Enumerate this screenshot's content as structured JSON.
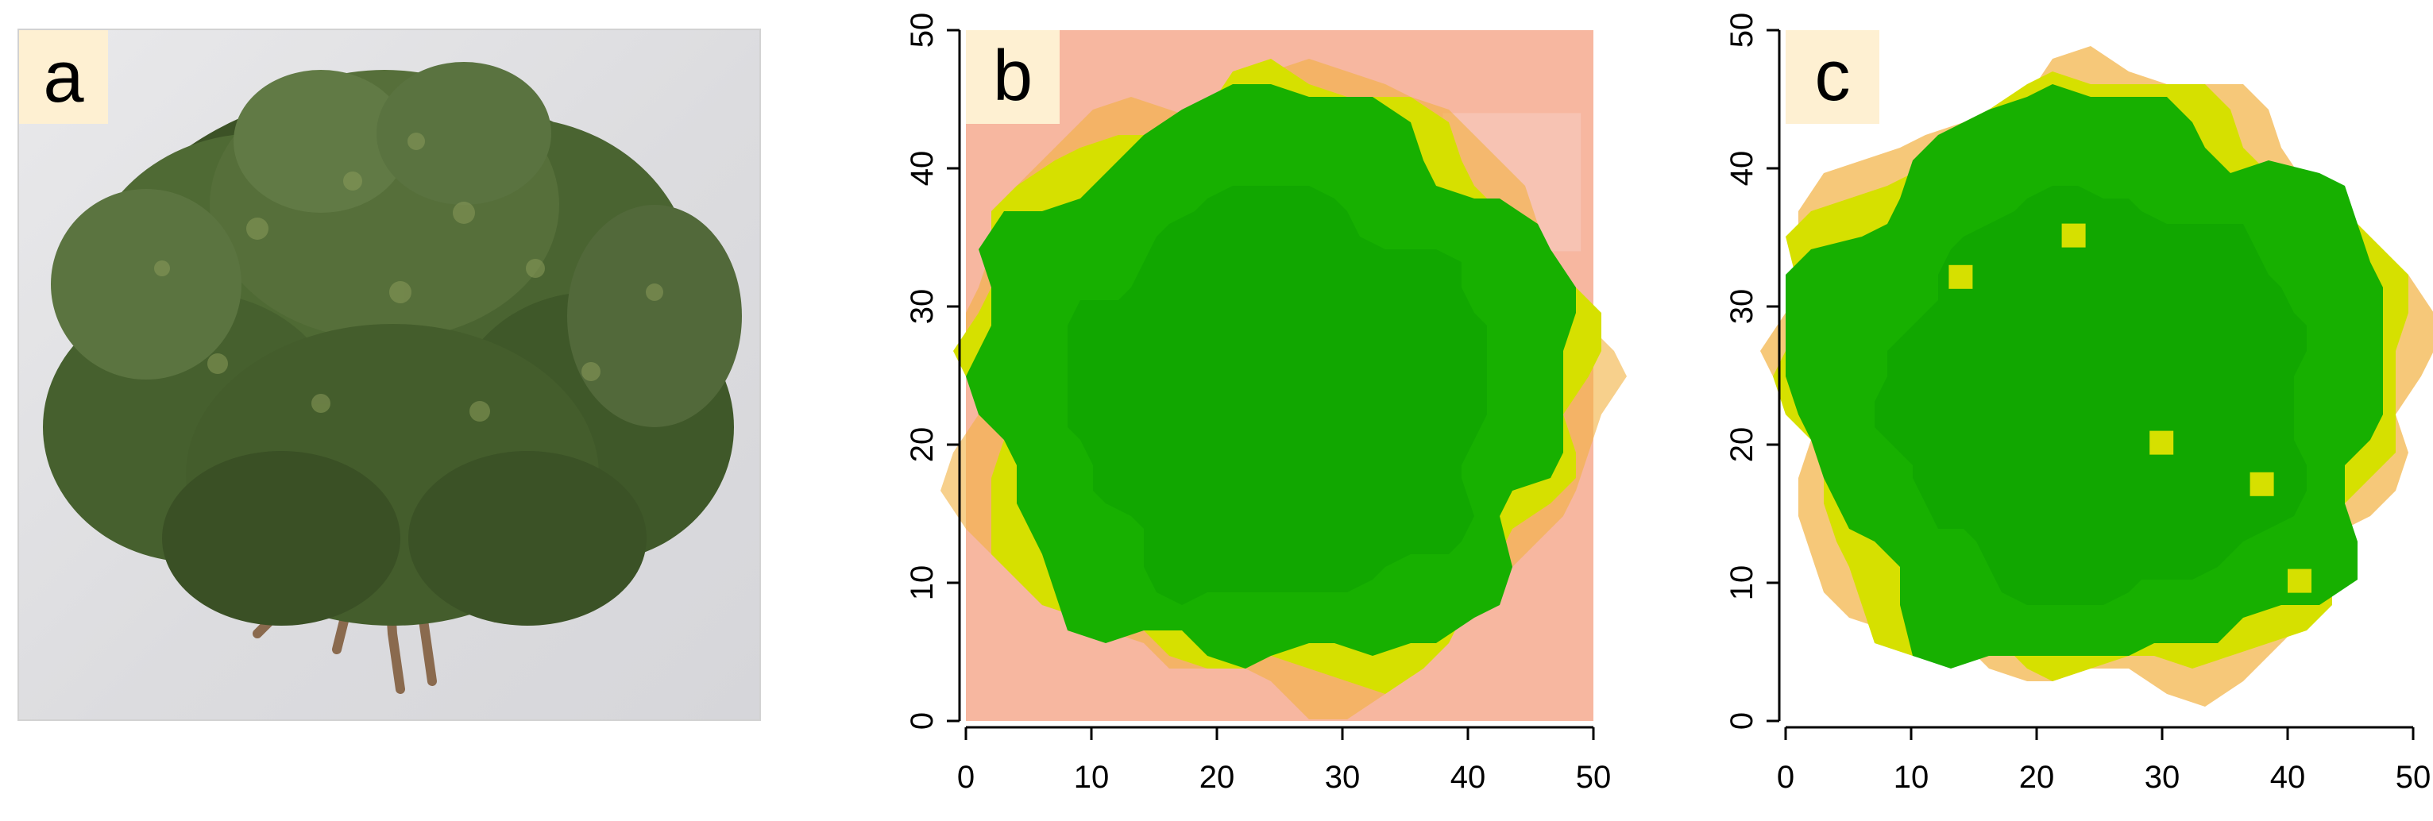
{
  "panels": [
    {
      "id": "a",
      "label": "a",
      "kind": "photo",
      "subject": "cedar-foliage"
    },
    {
      "id": "b",
      "label": "b",
      "kind": "raster-plot",
      "background": "salmon"
    },
    {
      "id": "c",
      "label": "c",
      "kind": "raster-plot",
      "background": "white"
    }
  ],
  "axes": {
    "x": {
      "min": 0,
      "max": 50,
      "ticks": [
        "0",
        "10",
        "20",
        "30",
        "40",
        "50"
      ]
    },
    "y": {
      "min": 0,
      "max": 50,
      "ticks": [
        "0",
        "10",
        "20",
        "30",
        "40",
        "50"
      ]
    }
  },
  "colors": {
    "canopy_green": "#17b000",
    "canopy_green_dark": "#0fa400",
    "edge_yellow": "#d6e000",
    "edge_orange": "#f2b040",
    "background_salmon": "#f7b7a0",
    "background_pink": "#f6c6b8",
    "label_box": "#fef0d2",
    "foliage_dark": "#3c5226",
    "foliage_mid": "#5b7440",
    "twig_brown": "#8a6a4e"
  }
}
